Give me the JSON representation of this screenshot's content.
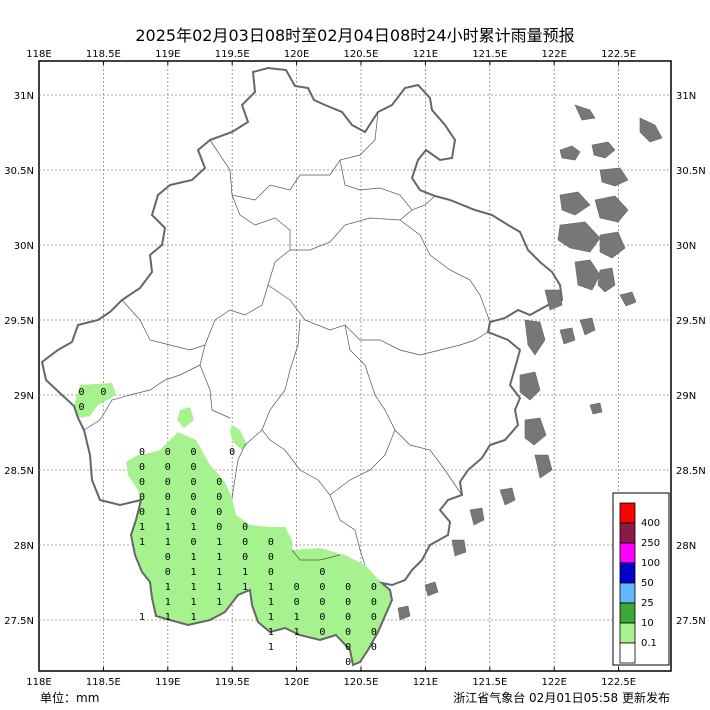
{
  "title": "2025年02月03日08时至02月04日08时24小时累计雨量预报",
  "unit_label": "单位：mm",
  "credit_label": "浙江省气象台 02月01日05:58 更新发布",
  "axes": {
    "lon_ticks": [
      "118E",
      "118.5E",
      "119E",
      "119.5E",
      "120E",
      "120.5E",
      "121E",
      "121.5E",
      "122E",
      "122.5E"
    ],
    "lat_ticks": [
      "31N",
      "30.5N",
      "30N",
      "29.5N",
      "29N",
      "28.5N",
      "28N",
      "27.5N"
    ]
  },
  "legend": {
    "levels": [
      {
        "label": "400",
        "color": "#ff0000"
      },
      {
        "label": "250",
        "color": "#8b1a4a"
      },
      {
        "label": "100",
        "color": "#ff00ff"
      },
      {
        "label": "50",
        "color": "#0000cd"
      },
      {
        "label": "25",
        "color": "#61b8ff"
      },
      {
        "label": "10",
        "color": "#3ca83c"
      },
      {
        "label": "0.1",
        "color": "#a6f28f"
      },
      {
        "label": "",
        "color": "#ffffff"
      }
    ]
  },
  "grid_values": [
    {
      "lon": 118.33,
      "lat": 29.0,
      "v": "0"
    },
    {
      "lon": 118.5,
      "lat": 29.0,
      "v": "0"
    },
    {
      "lon": 118.33,
      "lat": 28.9,
      "v": "0"
    },
    {
      "lon": 119.5,
      "lat": 28.6,
      "v": "0"
    },
    {
      "lon": 118.8,
      "lat": 28.6,
      "v": "0"
    },
    {
      "lon": 119.0,
      "lat": 28.6,
      "v": "0"
    },
    {
      "lon": 119.2,
      "lat": 28.6,
      "v": "0"
    },
    {
      "lon": 118.8,
      "lat": 28.5,
      "v": "0"
    },
    {
      "lon": 119.0,
      "lat": 28.5,
      "v": "0"
    },
    {
      "lon": 119.2,
      "lat": 28.5,
      "v": "0"
    },
    {
      "lon": 118.8,
      "lat": 28.4,
      "v": "0"
    },
    {
      "lon": 119.0,
      "lat": 28.4,
      "v": "0"
    },
    {
      "lon": 119.2,
      "lat": 28.4,
      "v": "0"
    },
    {
      "lon": 119.4,
      "lat": 28.4,
      "v": "0"
    },
    {
      "lon": 118.8,
      "lat": 28.3,
      "v": "0"
    },
    {
      "lon": 119.0,
      "lat": 28.3,
      "v": "0"
    },
    {
      "lon": 119.2,
      "lat": 28.3,
      "v": "0"
    },
    {
      "lon": 119.4,
      "lat": 28.3,
      "v": "0"
    },
    {
      "lon": 118.8,
      "lat": 28.2,
      "v": "0"
    },
    {
      "lon": 119.0,
      "lat": 28.2,
      "v": "1"
    },
    {
      "lon": 119.2,
      "lat": 28.2,
      "v": "0"
    },
    {
      "lon": 119.4,
      "lat": 28.2,
      "v": "0"
    },
    {
      "lon": 118.8,
      "lat": 28.1,
      "v": "1"
    },
    {
      "lon": 119.0,
      "lat": 28.1,
      "v": "1"
    },
    {
      "lon": 119.2,
      "lat": 28.1,
      "v": "1"
    },
    {
      "lon": 119.4,
      "lat": 28.1,
      "v": "0"
    },
    {
      "lon": 119.6,
      "lat": 28.1,
      "v": "0"
    },
    {
      "lon": 118.8,
      "lat": 28.0,
      "v": "1"
    },
    {
      "lon": 119.0,
      "lat": 28.0,
      "v": "1"
    },
    {
      "lon": 119.2,
      "lat": 28.0,
      "v": "0"
    },
    {
      "lon": 119.4,
      "lat": 28.0,
      "v": "1"
    },
    {
      "lon": 119.6,
      "lat": 28.0,
      "v": "0"
    },
    {
      "lon": 119.8,
      "lat": 28.0,
      "v": "0"
    },
    {
      "lon": 119.0,
      "lat": 27.9,
      "v": "0"
    },
    {
      "lon": 119.2,
      "lat": 27.9,
      "v": "1"
    },
    {
      "lon": 119.4,
      "lat": 27.9,
      "v": "1"
    },
    {
      "lon": 119.6,
      "lat": 27.9,
      "v": "0"
    },
    {
      "lon": 119.8,
      "lat": 27.9,
      "v": "0"
    },
    {
      "lon": 119.0,
      "lat": 27.8,
      "v": "0"
    },
    {
      "lon": 119.2,
      "lat": 27.8,
      "v": "1"
    },
    {
      "lon": 119.4,
      "lat": 27.8,
      "v": "1"
    },
    {
      "lon": 119.6,
      "lat": 27.8,
      "v": "1"
    },
    {
      "lon": 119.8,
      "lat": 27.8,
      "v": "0"
    },
    {
      "lon": 120.2,
      "lat": 27.8,
      "v": "0"
    },
    {
      "lon": 119.0,
      "lat": 27.7,
      "v": "1"
    },
    {
      "lon": 119.2,
      "lat": 27.7,
      "v": "1"
    },
    {
      "lon": 119.4,
      "lat": 27.7,
      "v": "1"
    },
    {
      "lon": 119.6,
      "lat": 27.7,
      "v": "1"
    },
    {
      "lon": 119.8,
      "lat": 27.7,
      "v": "1"
    },
    {
      "lon": 120.0,
      "lat": 27.7,
      "v": "0"
    },
    {
      "lon": 120.2,
      "lat": 27.7,
      "v": "0"
    },
    {
      "lon": 120.4,
      "lat": 27.7,
      "v": "0"
    },
    {
      "lon": 120.6,
      "lat": 27.7,
      "v": "0"
    },
    {
      "lon": 119.0,
      "lat": 27.6,
      "v": "1"
    },
    {
      "lon": 119.2,
      "lat": 27.6,
      "v": "1"
    },
    {
      "lon": 119.4,
      "lat": 27.6,
      "v": "1"
    },
    {
      "lon": 119.8,
      "lat": 27.6,
      "v": "1"
    },
    {
      "lon": 120.0,
      "lat": 27.6,
      "v": "0"
    },
    {
      "lon": 120.2,
      "lat": 27.6,
      "v": "0"
    },
    {
      "lon": 120.4,
      "lat": 27.6,
      "v": "0"
    },
    {
      "lon": 120.6,
      "lat": 27.6,
      "v": "0"
    },
    {
      "lon": 118.8,
      "lat": 27.5,
      "v": "1"
    },
    {
      "lon": 119.0,
      "lat": 27.5,
      "v": "1"
    },
    {
      "lon": 119.2,
      "lat": 27.5,
      "v": "1"
    },
    {
      "lon": 119.8,
      "lat": 27.5,
      "v": "1"
    },
    {
      "lon": 120.0,
      "lat": 27.5,
      "v": "1"
    },
    {
      "lon": 120.2,
      "lat": 27.5,
      "v": "0"
    },
    {
      "lon": 120.4,
      "lat": 27.5,
      "v": "0"
    },
    {
      "lon": 120.6,
      "lat": 27.5,
      "v": "0"
    },
    {
      "lon": 119.8,
      "lat": 27.4,
      "v": "1"
    },
    {
      "lon": 120.0,
      "lat": 27.4,
      "v": "1"
    },
    {
      "lon": 120.2,
      "lat": 27.4,
      "v": "0"
    },
    {
      "lon": 120.4,
      "lat": 27.4,
      "v": "0"
    },
    {
      "lon": 120.6,
      "lat": 27.4,
      "v": "0"
    },
    {
      "lon": 119.8,
      "lat": 27.3,
      "v": "1"
    },
    {
      "lon": 120.4,
      "lat": 27.3,
      "v": "0"
    },
    {
      "lon": 120.6,
      "lat": 27.3,
      "v": "0"
    },
    {
      "lon": 120.4,
      "lat": 27.2,
      "v": "0"
    }
  ]
}
